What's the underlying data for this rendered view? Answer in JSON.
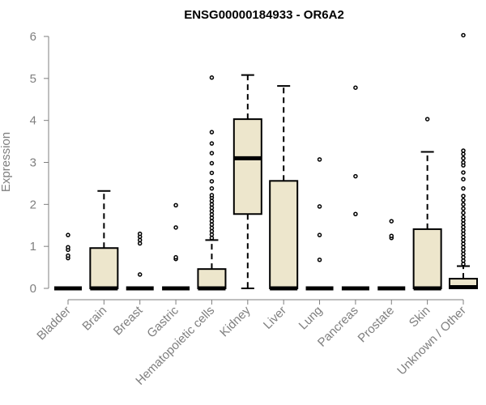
{
  "chart_data": {
    "type": "box",
    "title": "ENSG00000184933 - OR6A2",
    "xlabel": "",
    "ylabel": "Expression",
    "ylim": [
      0,
      6
    ],
    "yticks": [
      0,
      1,
      2,
      3,
      4,
      5,
      6
    ],
    "box_fill": "#ede6cc",
    "box_stroke": "#000000",
    "categories": [
      "Bladder",
      "Brain",
      "Breast",
      "Gastric",
      "Hematopoietic cells",
      "Kidney",
      "Liver",
      "Lung",
      "Pancreas",
      "Prostate",
      "Skin",
      "Unknown / Other"
    ],
    "boxes": [
      {
        "min": 0,
        "q1": 0,
        "median": 0,
        "q3": 0,
        "max": 0,
        "outliers": [
          0.72,
          0.78,
          0.92,
          0.98,
          1.27
        ]
      },
      {
        "min": 0,
        "q1": 0,
        "median": 0,
        "q3": 0.96,
        "max": 2.32,
        "outliers": []
      },
      {
        "min": 0,
        "q1": 0,
        "median": 0,
        "q3": 0,
        "max": 0,
        "outliers": [
          0.33,
          1.07,
          1.15,
          1.23,
          1.3
        ]
      },
      {
        "min": 0,
        "q1": 0,
        "median": 0,
        "q3": 0,
        "max": 0,
        "outliers": [
          0.7,
          0.74,
          1.45,
          1.98
        ]
      },
      {
        "min": 0,
        "q1": 0,
        "median": 0,
        "q3": 0.46,
        "max": 1.15,
        "outliers": [
          1.2,
          1.28,
          1.36,
          1.44,
          1.52,
          1.6,
          1.68,
          1.76,
          1.84,
          1.92,
          2.0,
          2.08,
          2.16,
          2.22,
          2.38,
          2.55,
          2.75,
          2.98,
          3.22,
          3.45,
          3.72,
          5.02
        ]
      },
      {
        "min": 0,
        "q1": 1.77,
        "median": 3.1,
        "q3": 4.03,
        "max": 5.08,
        "outliers": []
      },
      {
        "min": 0,
        "q1": 0,
        "median": 0,
        "q3": 2.56,
        "max": 4.82,
        "outliers": []
      },
      {
        "min": 0,
        "q1": 0,
        "median": 0,
        "q3": 0,
        "max": 0,
        "outliers": [
          0.68,
          1.27,
          1.95,
          3.07
        ]
      },
      {
        "min": 0,
        "q1": 0,
        "median": 0,
        "q3": 0,
        "max": 0,
        "outliers": [
          1.77,
          2.67,
          4.78
        ]
      },
      {
        "min": 0,
        "q1": 0,
        "median": 0,
        "q3": 0,
        "max": 0,
        "outliers": [
          1.2,
          1.25,
          1.6
        ]
      },
      {
        "min": 0,
        "q1": 0,
        "median": 0,
        "q3": 1.41,
        "max": 3.25,
        "outliers": [
          4.03
        ]
      },
      {
        "min": 0,
        "q1": 0,
        "median": 0.03,
        "q3": 0.23,
        "max": 0.53,
        "outliers": [
          0.58,
          0.66,
          0.74,
          0.82,
          0.9,
          0.98,
          1.06,
          1.14,
          1.22,
          1.3,
          1.38,
          1.46,
          1.54,
          1.62,
          1.7,
          1.8,
          1.9,
          2.0,
          2.1,
          2.2,
          2.38,
          2.6,
          2.76,
          2.93,
          3.0,
          3.1,
          3.2,
          3.28,
          6.03
        ]
      }
    ]
  }
}
